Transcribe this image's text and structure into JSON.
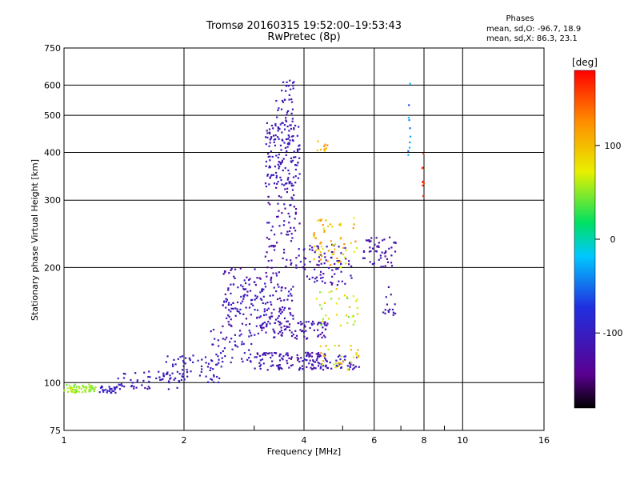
{
  "header": {
    "title": "Tromsø 20160315 19:52:00–19:53:43",
    "subtitle": "RwPretec (8p)"
  },
  "phases_box": {
    "label": "Phases",
    "line1": "mean, sd,O: -96.7, 18.9",
    "line2": "mean, sd,X:  86.3, 23.1"
  },
  "chart_data": {
    "type": "scatter",
    "xlabel": "Frequency [MHz]",
    "ylabel": "Stationary phase Virtual Height [km]",
    "x_scale": "log",
    "y_scale": "log",
    "xlim": [
      1,
      16
    ],
    "ylim": [
      75,
      750
    ],
    "x_ticks": [
      1,
      2,
      4,
      6,
      8,
      10,
      16
    ],
    "x_minor": [
      3,
      5,
      7,
      9
    ],
    "y_ticks": [
      75,
      100,
      200,
      300,
      400,
      500,
      600,
      750
    ],
    "grid": true,
    "colorbar": {
      "label": "[deg]",
      "ticks": [
        100,
        0,
        -100
      ],
      "range": [
        -180,
        180
      ],
      "colors": [
        "#000000",
        "#5a0090",
        "#2030e0",
        "#00c8ff",
        "#00e060",
        "#e8f000",
        "#ff8c00",
        "#ff0000"
      ]
    },
    "clusters": [
      {
        "xr": [
          1.0,
          1.2
        ],
        "yr": [
          94,
          99
        ],
        "n": 60,
        "c": [
          40,
          65
        ]
      },
      {
        "xr": [
          1.2,
          1.35
        ],
        "yr": [
          94,
          98
        ],
        "n": 25,
        "c": [
          -110,
          -90
        ]
      },
      {
        "xr": [
          1.35,
          2.0
        ],
        "yr": [
          96,
          108
        ],
        "n": 60,
        "c": [
          -120,
          -95
        ]
      },
      {
        "xr": [
          1.8,
          2.5
        ],
        "yr": [
          100,
          118
        ],
        "n": 60,
        "c": [
          -120,
          -90
        ]
      },
      {
        "xr": [
          2.3,
          3.0
        ],
        "yr": [
          112,
          140
        ],
        "n": 50,
        "c": [
          -125,
          -90
        ]
      },
      {
        "xr": [
          2.5,
          3.8
        ],
        "yr": [
          140,
          180
        ],
        "n": 150,
        "c": [
          -130,
          -90
        ]
      },
      {
        "xr": [
          2.5,
          3.5
        ],
        "yr": [
          180,
          200
        ],
        "n": 40,
        "c": [
          -140,
          -100
        ]
      },
      {
        "xr": [
          3.2,
          3.9
        ],
        "yr": [
          330,
          480
        ],
        "n": 150,
        "c": [
          -120,
          -95
        ]
      },
      {
        "xr": [
          3.4,
          3.8
        ],
        "yr": [
          480,
          620
        ],
        "n": 35,
        "c": [
          -120,
          -100
        ]
      },
      {
        "xr": [
          3.2,
          3.9
        ],
        "yr": [
          200,
          330
        ],
        "n": 80,
        "c": [
          -140,
          -100
        ]
      },
      {
        "xr": [
          3.0,
          4.6
        ],
        "yr": [
          108,
          120
        ],
        "n": 120,
        "c": [
          -130,
          -100
        ]
      },
      {
        "xr": [
          3.0,
          4.6
        ],
        "yr": [
          130,
          145
        ],
        "n": 90,
        "c": [
          -130,
          -100
        ]
      },
      {
        "xr": [
          3.8,
          5.3
        ],
        "yr": [
          180,
          230
        ],
        "n": 80,
        "c": [
          -130,
          -100
        ]
      },
      {
        "xr": [
          4.3,
          5.5
        ],
        "yr": [
          108,
          118
        ],
        "n": 40,
        "c": [
          -120,
          -90
        ]
      },
      {
        "xr": [
          4.2,
          5.5
        ],
        "yr": [
          200,
          270
        ],
        "n": 60,
        "c": [
          60,
          130
        ]
      },
      {
        "xr": [
          4.3,
          5.5
        ],
        "yr": [
          140,
          180
        ],
        "n": 35,
        "c": [
          30,
          100
        ]
      },
      {
        "xr": [
          4.3,
          5.5
        ],
        "yr": [
          108,
          125
        ],
        "n": 30,
        "c": [
          60,
          120
        ]
      },
      {
        "xr": [
          4.3,
          4.6
        ],
        "yr": [
          400,
          430
        ],
        "n": 10,
        "c": [
          90,
          130
        ]
      },
      {
        "xr": [
          5.6,
          6.8
        ],
        "yr": [
          200,
          240
        ],
        "n": 50,
        "c": [
          -140,
          -100
        ]
      },
      {
        "xr": [
          6.3,
          6.8
        ],
        "yr": [
          150,
          180
        ],
        "n": 15,
        "c": [
          -130,
          -100
        ]
      },
      {
        "xr": [
          7.3,
          7.4
        ],
        "yr": [
          380,
          620
        ],
        "n": 10,
        "c": [
          -60,
          -20
        ]
      },
      {
        "xr": [
          7.9,
          8.0
        ],
        "yr": [
          290,
          420
        ],
        "n": 8,
        "c": [
          150,
          180
        ]
      }
    ]
  }
}
